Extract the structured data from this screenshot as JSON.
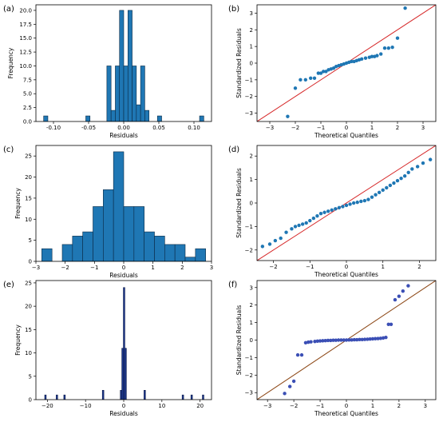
{
  "chart_data": [
    {
      "panel": "(a)",
      "type": "bar",
      "xlabel": "Residuals",
      "ylabel": "Frequency",
      "xlim": [
        -0.125,
        0.125
      ],
      "ylim": [
        0,
        21
      ],
      "xticks": [
        -0.1,
        -0.05,
        0.0,
        0.05,
        0.1
      ],
      "xtick_labels": [
        "-0.10",
        "-0.05",
        "0.00",
        "0.05",
        "0.10"
      ],
      "yticks": [
        0,
        2.5,
        5,
        7.5,
        10,
        12.5,
        15,
        17.5,
        20
      ],
      "ytick_labels": [
        "0.0",
        "2.5",
        "5.0",
        "7.5",
        "10.0",
        "12.5",
        "15.0",
        "17.5",
        "20.0"
      ],
      "bar_color": "#1f77b4",
      "edge_color": "#0b2a45",
      "bins": [
        {
          "x0": -0.114,
          "x1": -0.108,
          "v": 1
        },
        {
          "x0": -0.054,
          "x1": -0.048,
          "v": 1
        },
        {
          "x0": -0.024,
          "x1": -0.018,
          "v": 10
        },
        {
          "x0": -0.018,
          "x1": -0.012,
          "v": 2
        },
        {
          "x0": -0.012,
          "x1": -0.006,
          "v": 10
        },
        {
          "x0": -0.006,
          "x1": 0.0,
          "v": 20
        },
        {
          "x0": 0.0,
          "x1": 0.006,
          "v": 10
        },
        {
          "x0": 0.006,
          "x1": 0.012,
          "v": 20
        },
        {
          "x0": 0.012,
          "x1": 0.018,
          "v": 10
        },
        {
          "x0": 0.018,
          "x1": 0.024,
          "v": 3
        },
        {
          "x0": 0.024,
          "x1": 0.03,
          "v": 10
        },
        {
          "x0": 0.03,
          "x1": 0.036,
          "v": 2
        },
        {
          "x0": 0.048,
          "x1": 0.054,
          "v": 1
        },
        {
          "x0": 0.108,
          "x1": 0.114,
          "v": 1
        }
      ]
    },
    {
      "panel": "(b)",
      "type": "scatter",
      "xlabel": "Theoretical Quantiles",
      "ylabel": "Standardized Residuals",
      "xlim": [
        -3.5,
        3.5
      ],
      "ylim": [
        -3.5,
        3.5
      ],
      "xticks": [
        -3,
        -2,
        -1,
        0,
        1,
        2,
        3
      ],
      "xtick_labels": [
        "−3",
        "−2",
        "−1",
        "0",
        "1",
        "2",
        "3"
      ],
      "yticks": [
        -3,
        -2,
        -1,
        0,
        1,
        2,
        3
      ],
      "ytick_labels": [
        "−3",
        "−2",
        "−1",
        "0",
        "1",
        "2",
        "3"
      ],
      "point_color": "#1f77b4",
      "line_color": "#d62728",
      "ref_line": [
        [
          -3.5,
          -3.5
        ],
        [
          3.5,
          3.5
        ]
      ],
      "points": [
        [
          -2.3,
          -3.2
        ],
        [
          -2.0,
          -1.5
        ],
        [
          -1.8,
          -1.0
        ],
        [
          -1.6,
          -1.0
        ],
        [
          -1.4,
          -0.9
        ],
        [
          -1.25,
          -0.9
        ],
        [
          -1.1,
          -0.6
        ],
        [
          -1.0,
          -0.6
        ],
        [
          -0.9,
          -0.5
        ],
        [
          -0.8,
          -0.5
        ],
        [
          -0.7,
          -0.4
        ],
        [
          -0.6,
          -0.35
        ],
        [
          -0.5,
          -0.3
        ],
        [
          -0.4,
          -0.2
        ],
        [
          -0.3,
          -0.15
        ],
        [
          -0.2,
          -0.1
        ],
        [
          -0.1,
          -0.05
        ],
        [
          0.0,
          0.0
        ],
        [
          0.1,
          0.05
        ],
        [
          0.2,
          0.1
        ],
        [
          0.3,
          0.1
        ],
        [
          0.4,
          0.15
        ],
        [
          0.5,
          0.2
        ],
        [
          0.6,
          0.25
        ],
        [
          0.75,
          0.3
        ],
        [
          0.9,
          0.35
        ],
        [
          1.0,
          0.4
        ],
        [
          1.1,
          0.4
        ],
        [
          1.2,
          0.45
        ],
        [
          1.35,
          0.55
        ],
        [
          1.5,
          0.9
        ],
        [
          1.65,
          0.9
        ],
        [
          1.8,
          0.95
        ],
        [
          2.0,
          1.5
        ],
        [
          2.3,
          3.3
        ]
      ]
    },
    {
      "panel": "(c)",
      "type": "bar",
      "xlabel": "Residuals",
      "ylabel": "Frequency",
      "xlim": [
        -3,
        3
      ],
      "ylim": [
        0,
        27.5
      ],
      "xticks": [
        -3,
        -2,
        -1,
        0,
        1,
        2,
        3
      ],
      "xtick_labels": [
        "−3",
        "−2",
        "−1",
        "0",
        "1",
        "2",
        "3"
      ],
      "yticks": [
        0,
        5,
        10,
        15,
        20,
        25
      ],
      "ytick_labels": [
        "0",
        "5",
        "10",
        "15",
        "20",
        "25"
      ],
      "bar_color": "#1f77b4",
      "edge_color": "#0b2a45",
      "bins": [
        {
          "x0": -2.8,
          "x1": -2.45,
          "v": 3
        },
        {
          "x0": -2.1,
          "x1": -1.75,
          "v": 4
        },
        {
          "x0": -1.75,
          "x1": -1.4,
          "v": 6
        },
        {
          "x0": -1.4,
          "x1": -1.05,
          "v": 7
        },
        {
          "x0": -1.05,
          "x1": -0.7,
          "v": 13
        },
        {
          "x0": -0.7,
          "x1": -0.35,
          "v": 17
        },
        {
          "x0": -0.35,
          "x1": 0.0,
          "v": 26
        },
        {
          "x0": 0.0,
          "x1": 0.35,
          "v": 13
        },
        {
          "x0": 0.35,
          "x1": 0.7,
          "v": 13
        },
        {
          "x0": 0.7,
          "x1": 1.05,
          "v": 7
        },
        {
          "x0": 1.05,
          "x1": 1.4,
          "v": 6
        },
        {
          "x0": 1.4,
          "x1": 1.75,
          "v": 4
        },
        {
          "x0": 1.75,
          "x1": 2.1,
          "v": 4
        },
        {
          "x0": 2.1,
          "x1": 2.45,
          "v": 1
        },
        {
          "x0": 2.45,
          "x1": 2.8,
          "v": 3
        }
      ]
    },
    {
      "panel": "(d)",
      "type": "scatter",
      "xlabel": "Theoretical Quantiles",
      "ylabel": "Standardized Residuals",
      "xlim": [
        -2.45,
        2.45
      ],
      "ylim": [
        -2.45,
        2.45
      ],
      "xticks": [
        -2,
        -1,
        0,
        1,
        2
      ],
      "xtick_labels": [
        "−2",
        "−1",
        "0",
        "1",
        "2"
      ],
      "yticks": [
        -2,
        -1,
        0,
        1,
        2
      ],
      "ytick_labels": [
        "−2",
        "−1",
        "0",
        "1",
        "2"
      ],
      "point_color": "#1f77b4",
      "line_color": "#d62728",
      "ref_line": [
        [
          -2.45,
          -2.45
        ],
        [
          2.45,
          2.45
        ]
      ],
      "points": [
        [
          -2.3,
          -1.85
        ],
        [
          -2.1,
          -1.75
        ],
        [
          -1.95,
          -1.6
        ],
        [
          -1.8,
          -1.5
        ],
        [
          -1.65,
          -1.25
        ],
        [
          -1.5,
          -1.1
        ],
        [
          -1.4,
          -1.0
        ],
        [
          -1.3,
          -0.95
        ],
        [
          -1.2,
          -0.9
        ],
        [
          -1.1,
          -0.85
        ],
        [
          -1.0,
          -0.75
        ],
        [
          -0.9,
          -0.65
        ],
        [
          -0.8,
          -0.55
        ],
        [
          -0.7,
          -0.45
        ],
        [
          -0.6,
          -0.4
        ],
        [
          -0.5,
          -0.35
        ],
        [
          -0.4,
          -0.3
        ],
        [
          -0.3,
          -0.25
        ],
        [
          -0.2,
          -0.2
        ],
        [
          -0.1,
          -0.15
        ],
        [
          0.0,
          -0.1
        ],
        [
          0.1,
          -0.05
        ],
        [
          0.2,
          0.0
        ],
        [
          0.3,
          0.03
        ],
        [
          0.4,
          0.07
        ],
        [
          0.5,
          0.1
        ],
        [
          0.6,
          0.15
        ],
        [
          0.7,
          0.25
        ],
        [
          0.8,
          0.35
        ],
        [
          0.9,
          0.45
        ],
        [
          1.0,
          0.55
        ],
        [
          1.1,
          0.65
        ],
        [
          1.2,
          0.75
        ],
        [
          1.3,
          0.85
        ],
        [
          1.4,
          0.95
        ],
        [
          1.5,
          1.05
        ],
        [
          1.6,
          1.15
        ],
        [
          1.7,
          1.3
        ],
        [
          1.8,
          1.45
        ],
        [
          1.95,
          1.55
        ],
        [
          2.1,
          1.7
        ],
        [
          2.3,
          1.85
        ]
      ]
    },
    {
      "panel": "(e)",
      "type": "bar",
      "xlabel": "Residuals",
      "ylabel": "Frequency",
      "xlim": [
        -23,
        23
      ],
      "ylim": [
        0,
        25.5
      ],
      "xticks": [
        -20,
        -10,
        0,
        10,
        20
      ],
      "xtick_labels": [
        "−20",
        "−10",
        "0",
        "10",
        "20"
      ],
      "yticks": [
        0,
        5,
        10,
        15,
        20,
        25
      ],
      "ytick_labels": [
        "0",
        "5",
        "10",
        "15",
        "20",
        "25"
      ],
      "bar_color": "#1f3a93",
      "edge_color": "#0b1a45",
      "bins": [
        {
          "x0": -20.7,
          "x1": -20.3,
          "v": 1
        },
        {
          "x0": -17.7,
          "x1": -17.3,
          "v": 1
        },
        {
          "x0": -15.7,
          "x1": -15.3,
          "v": 1
        },
        {
          "x0": -5.6,
          "x1": -5.2,
          "v": 2
        },
        {
          "x0": -0.9,
          "x1": -0.5,
          "v": 2
        },
        {
          "x0": -0.5,
          "x1": -0.1,
          "v": 11
        },
        {
          "x0": -0.1,
          "x1": 0.3,
          "v": 24
        },
        {
          "x0": 0.3,
          "x1": 0.7,
          "v": 11
        },
        {
          "x0": 5.3,
          "x1": 5.7,
          "v": 2
        },
        {
          "x0": 15.3,
          "x1": 15.7,
          "v": 1
        },
        {
          "x0": 17.6,
          "x1": 18.0,
          "v": 1
        },
        {
          "x0": 20.6,
          "x1": 21.0,
          "v": 1
        }
      ]
    },
    {
      "panel": "(f)",
      "type": "scatter",
      "xlabel": "Theoretical Quantiles",
      "ylabel": "Standardized Residuals",
      "xlim": [
        -3.4,
        3.4
      ],
      "ylim": [
        -3.4,
        3.4
      ],
      "xticks": [
        -3,
        -2,
        -1,
        0,
        1,
        2,
        3
      ],
      "xtick_labels": [
        "−3",
        "−2",
        "−1",
        "0",
        "1",
        "2",
        "3"
      ],
      "yticks": [
        -3,
        -2,
        -1,
        0,
        1,
        2,
        3
      ],
      "ytick_labels": [
        "−3",
        "−2",
        "−1",
        "0",
        "1",
        "2",
        "3"
      ],
      "point_color": "#3b4fb5",
      "line_color": "#8b4513",
      "ref_line": [
        [
          -3.4,
          -3.4
        ],
        [
          3.4,
          3.4
        ]
      ],
      "points": [
        [
          -2.35,
          -3.05
        ],
        [
          -2.15,
          -2.65
        ],
        [
          -2.0,
          -2.35
        ],
        [
          -1.85,
          -0.85
        ],
        [
          -1.7,
          -0.85
        ],
        [
          -1.55,
          -0.15
        ],
        [
          -1.45,
          -0.12
        ],
        [
          -1.35,
          -0.1
        ],
        [
          -1.2,
          -0.08
        ],
        [
          -1.1,
          -0.06
        ],
        [
          -1.0,
          -0.05
        ],
        [
          -0.9,
          -0.04
        ],
        [
          -0.8,
          -0.03
        ],
        [
          -0.7,
          -0.02
        ],
        [
          -0.6,
          -0.02
        ],
        [
          -0.5,
          -0.01
        ],
        [
          -0.4,
          -0.01
        ],
        [
          -0.3,
          0.0
        ],
        [
          -0.2,
          0.0
        ],
        [
          -0.1,
          0.0
        ],
        [
          0.0,
          0.0
        ],
        [
          0.1,
          0.01
        ],
        [
          0.2,
          0.01
        ],
        [
          0.3,
          0.02
        ],
        [
          0.4,
          0.02
        ],
        [
          0.5,
          0.03
        ],
        [
          0.6,
          0.03
        ],
        [
          0.7,
          0.04
        ],
        [
          0.8,
          0.05
        ],
        [
          0.9,
          0.06
        ],
        [
          1.0,
          0.07
        ],
        [
          1.1,
          0.08
        ],
        [
          1.2,
          0.09
        ],
        [
          1.3,
          0.1
        ],
        [
          1.4,
          0.12
        ],
        [
          1.5,
          0.15
        ],
        [
          1.6,
          0.9
        ],
        [
          1.7,
          0.9
        ],
        [
          1.85,
          2.3
        ],
        [
          2.0,
          2.5
        ],
        [
          2.15,
          2.8
        ],
        [
          2.35,
          3.1
        ]
      ]
    }
  ]
}
